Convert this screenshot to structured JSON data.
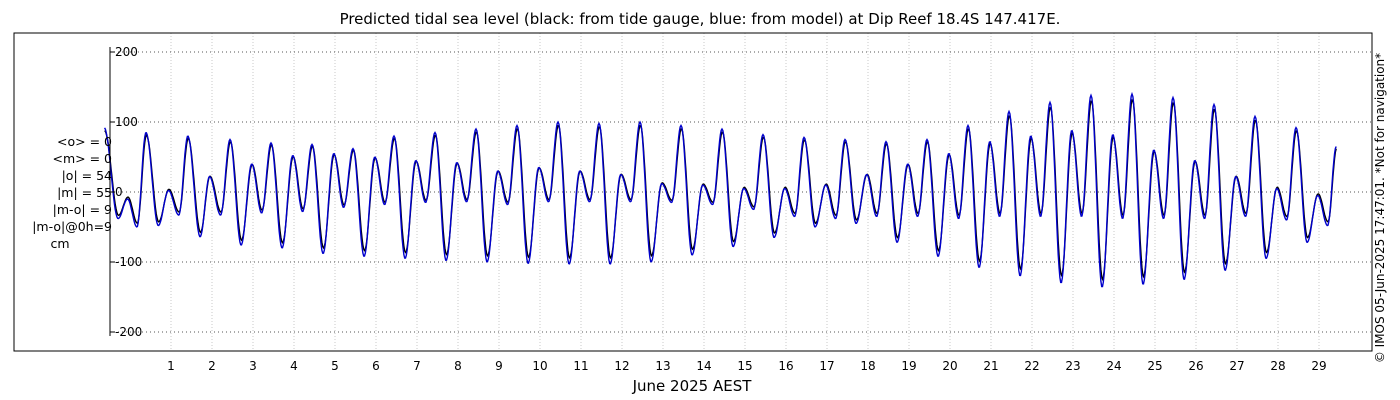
{
  "chart_data": {
    "type": "line",
    "title": "Predicted tidal sea level (black: from tide gauge, blue: from model) at Dip Reef 18.4S 147.417E.",
    "xlabel": "June 2025 AEST",
    "ylabel": "",
    "x_ticks": [
      "1",
      "2",
      "3",
      "4",
      "5",
      "6",
      "7",
      "8",
      "9",
      "10",
      "11",
      "12",
      "13",
      "14",
      "15",
      "16",
      "17",
      "18",
      "19",
      "20",
      "21",
      "22",
      "23",
      "24",
      "25",
      "26",
      "27",
      "28",
      "29"
    ],
    "y_ticks": [
      "200",
      "100",
      "0",
      "-100",
      "-200"
    ],
    "ylim": [
      -215,
      228
    ],
    "xlim_days": [
      -0.8,
      30.0
    ],
    "grid": true,
    "series": [
      {
        "name": "tide gauge",
        "color": "#000000"
      },
      {
        "name": "model",
        "color": "#0000cc"
      }
    ],
    "tide_extrema": [
      {
        "t": -0.62,
        "v": 92
      },
      {
        "t": -0.28,
        "v": -38
      },
      {
        "t": -0.05,
        "v": -10
      },
      {
        "t": 0.18,
        "v": -50
      },
      {
        "t": 0.4,
        "v": 85
      },
      {
        "t": 0.7,
        "v": -48
      },
      {
        "t": 0.95,
        "v": 2
      },
      {
        "t": 1.2,
        "v": -33
      },
      {
        "t": 1.42,
        "v": 80
      },
      {
        "t": 1.72,
        "v": -64
      },
      {
        "t": 1.95,
        "v": 22
      },
      {
        "t": 2.22,
        "v": -33
      },
      {
        "t": 2.45,
        "v": 75
      },
      {
        "t": 2.72,
        "v": -76
      },
      {
        "t": 2.98,
        "v": 40
      },
      {
        "t": 3.22,
        "v": -30
      },
      {
        "t": 3.45,
        "v": 70
      },
      {
        "t": 3.72,
        "v": -80
      },
      {
        "t": 3.98,
        "v": 52
      },
      {
        "t": 4.22,
        "v": -28
      },
      {
        "t": 4.45,
        "v": 68
      },
      {
        "t": 4.72,
        "v": -88
      },
      {
        "t": 4.98,
        "v": 55
      },
      {
        "t": 5.22,
        "v": -22
      },
      {
        "t": 5.45,
        "v": 62
      },
      {
        "t": 5.72,
        "v": -92
      },
      {
        "t": 5.98,
        "v": 50
      },
      {
        "t": 6.22,
        "v": -18
      },
      {
        "t": 6.45,
        "v": 80
      },
      {
        "t": 6.72,
        "v": -95
      },
      {
        "t": 6.98,
        "v": 45
      },
      {
        "t": 7.22,
        "v": -15
      },
      {
        "t": 7.45,
        "v": 85
      },
      {
        "t": 7.72,
        "v": -98
      },
      {
        "t": 7.98,
        "v": 42
      },
      {
        "t": 8.22,
        "v": -14
      },
      {
        "t": 8.45,
        "v": 90
      },
      {
        "t": 8.72,
        "v": -100
      },
      {
        "t": 8.98,
        "v": 30
      },
      {
        "t": 9.22,
        "v": -18
      },
      {
        "t": 9.45,
        "v": 95
      },
      {
        "t": 9.72,
        "v": -102
      },
      {
        "t": 9.98,
        "v": 35
      },
      {
        "t": 10.22,
        "v": -14
      },
      {
        "t": 10.45,
        "v": 100
      },
      {
        "t": 10.72,
        "v": -103
      },
      {
        "t": 10.98,
        "v": 30
      },
      {
        "t": 11.22,
        "v": -14
      },
      {
        "t": 11.45,
        "v": 98
      },
      {
        "t": 11.72,
        "v": -103
      },
      {
        "t": 11.98,
        "v": 25
      },
      {
        "t": 12.22,
        "v": -14
      },
      {
        "t": 12.45,
        "v": 100
      },
      {
        "t": 12.72,
        "v": -100
      },
      {
        "t": 12.98,
        "v": 12
      },
      {
        "t": 13.22,
        "v": -15
      },
      {
        "t": 13.45,
        "v": 95
      },
      {
        "t": 13.72,
        "v": -90
      },
      {
        "t": 13.98,
        "v": 10
      },
      {
        "t": 14.22,
        "v": -18
      },
      {
        "t": 14.45,
        "v": 90
      },
      {
        "t": 14.72,
        "v": -78
      },
      {
        "t": 14.98,
        "v": 5
      },
      {
        "t": 15.22,
        "v": -25
      },
      {
        "t": 15.45,
        "v": 82
      },
      {
        "t": 15.72,
        "v": -65
      },
      {
        "t": 15.98,
        "v": 5
      },
      {
        "t": 16.22,
        "v": -35
      },
      {
        "t": 16.45,
        "v": 78
      },
      {
        "t": 16.72,
        "v": -50
      },
      {
        "t": 16.98,
        "v": 10
      },
      {
        "t": 17.22,
        "v": -38
      },
      {
        "t": 17.45,
        "v": 75
      },
      {
        "t": 17.72,
        "v": -45
      },
      {
        "t": 17.98,
        "v": 25
      },
      {
        "t": 18.22,
        "v": -35
      },
      {
        "t": 18.45,
        "v": 72
      },
      {
        "t": 18.72,
        "v": -72
      },
      {
        "t": 18.98,
        "v": 40
      },
      {
        "t": 19.22,
        "v": -35
      },
      {
        "t": 19.45,
        "v": 75
      },
      {
        "t": 19.72,
        "v": -92
      },
      {
        "t": 19.98,
        "v": 55
      },
      {
        "t": 20.22,
        "v": -38
      },
      {
        "t": 20.45,
        "v": 95
      },
      {
        "t": 20.72,
        "v": -108
      },
      {
        "t": 20.98,
        "v": 72
      },
      {
        "t": 21.22,
        "v": -35
      },
      {
        "t": 21.45,
        "v": 115
      },
      {
        "t": 21.72,
        "v": -120
      },
      {
        "t": 21.98,
        "v": 80
      },
      {
        "t": 22.22,
        "v": -35
      },
      {
        "t": 22.45,
        "v": 128
      },
      {
        "t": 22.72,
        "v": -130
      },
      {
        "t": 22.98,
        "v": 88
      },
      {
        "t": 23.22,
        "v": -35
      },
      {
        "t": 23.45,
        "v": 138
      },
      {
        "t": 23.72,
        "v": -136
      },
      {
        "t": 23.98,
        "v": 82
      },
      {
        "t": 24.22,
        "v": -38
      },
      {
        "t": 24.45,
        "v": 140
      },
      {
        "t": 24.72,
        "v": -132
      },
      {
        "t": 24.98,
        "v": 60
      },
      {
        "t": 25.22,
        "v": -38
      },
      {
        "t": 25.45,
        "v": 135
      },
      {
        "t": 25.72,
        "v": -125
      },
      {
        "t": 25.98,
        "v": 45
      },
      {
        "t": 26.22,
        "v": -38
      },
      {
        "t": 26.45,
        "v": 125
      },
      {
        "t": 26.72,
        "v": -112
      },
      {
        "t": 26.98,
        "v": 22
      },
      {
        "t": 27.22,
        "v": -35
      },
      {
        "t": 27.45,
        "v": 108
      },
      {
        "t": 27.72,
        "v": -95
      },
      {
        "t": 27.98,
        "v": 5
      },
      {
        "t": 28.22,
        "v": -40
      },
      {
        "t": 28.45,
        "v": 92
      },
      {
        "t": 28.72,
        "v": -72
      },
      {
        "t": 28.98,
        "v": -5
      },
      {
        "t": 29.22,
        "v": -48
      },
      {
        "t": 29.43,
        "v": 65
      }
    ]
  },
  "stats": {
    "lines": [
      "<o> = 0",
      "<m> = 0",
      "|o| = 54",
      "|m| = 55",
      "|m-o| = 9",
      "|m-o|@0h=9"
    ],
    "unit": "cm"
  },
  "credit": "© IMOS 05-Jun-2025 17:47:01. *Not for navigation*"
}
